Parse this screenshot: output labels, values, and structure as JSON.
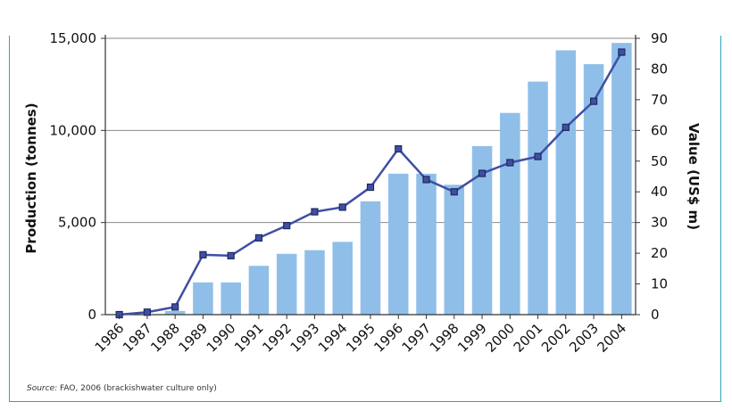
{
  "chart_data": {
    "type": "bar",
    "categories": [
      "1986",
      "1987",
      "1988",
      "1989",
      "1990",
      "1991",
      "1992",
      "1993",
      "1994",
      "1995",
      "1996",
      "1997",
      "1998",
      "1999",
      "2000",
      "2001",
      "2002",
      "2003",
      "2004"
    ],
    "series": [
      {
        "type": "bar",
        "axis": "left",
        "color": "#8fbfe8",
        "values": [
          0,
          0,
          200,
          1750,
          1750,
          2650,
          3300,
          3500,
          3950,
          6150,
          7650,
          7650,
          7050,
          9150,
          10950,
          12650,
          14350,
          13600,
          14750
        ]
      },
      {
        "type": "line",
        "axis": "right",
        "color": "#3f4fa5",
        "values": [
          0,
          0.8,
          2.5,
          19.5,
          19.2,
          25,
          29,
          33.5,
          35,
          41.5,
          54,
          44,
          40,
          46,
          49.5,
          51.5,
          61,
          69.5,
          85.5
        ]
      }
    ],
    "ylabel": "Production (tonnes)",
    "y2label": "Value (US$ m)",
    "ylim": [
      0,
      15000
    ],
    "y2lim": [
      0,
      90
    ],
    "yticks": [
      "0",
      "5,000",
      "10,000",
      "15,000"
    ],
    "yticks_values": [
      0,
      5000,
      10000,
      15000
    ],
    "y2ticks": [
      "0",
      "10",
      "20",
      "30",
      "40",
      "50",
      "60",
      "70",
      "80",
      "90"
    ],
    "y2ticks_values": [
      0,
      10,
      20,
      30,
      40,
      50,
      60,
      70,
      80,
      90
    ],
    "grid": "horizontal"
  },
  "source": {
    "prefix": "Source:",
    "text": "FAO, 2006 (brackishwater culture only)"
  }
}
